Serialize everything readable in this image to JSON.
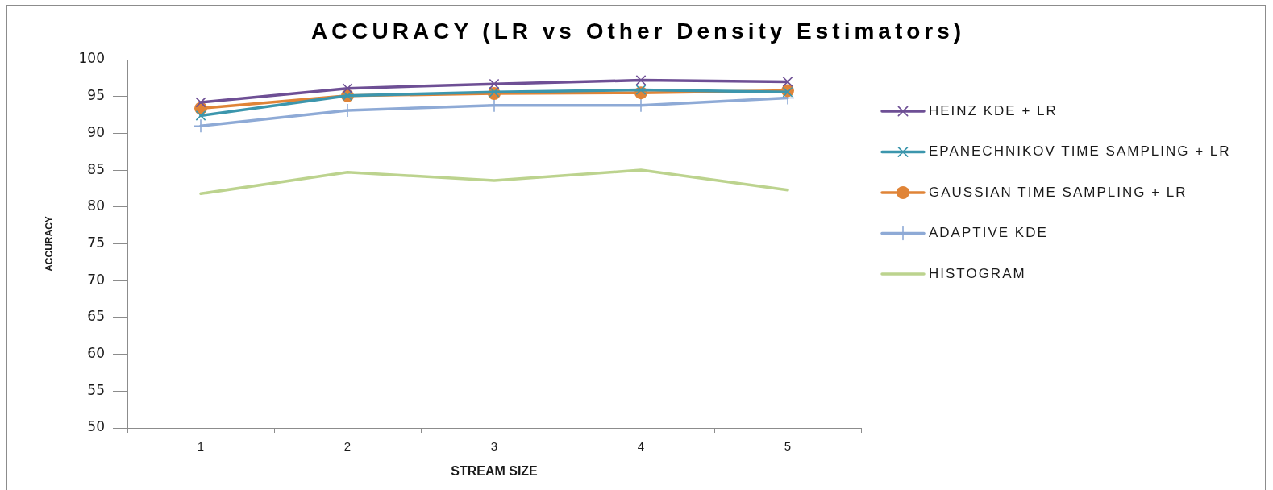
{
  "chart_data": {
    "type": "line",
    "title": "ACCURACY (LR vs Other Density Estimators)",
    "xlabel": "STREAM SIZE",
    "ylabel": "ACCURACY",
    "categories": [
      "1",
      "2",
      "3",
      "4",
      "5"
    ],
    "ylim": [
      50,
      100
    ],
    "yticks": [
      50,
      55,
      60,
      65,
      70,
      75,
      80,
      85,
      90,
      95,
      100
    ],
    "grid": false,
    "legend": "right",
    "series": [
      {
        "name": "HEINZ KDE + LR",
        "color": "#6e4f95",
        "marker": "cross",
        "values": [
          94.2,
          96.1,
          96.7,
          97.2,
          97.0
        ]
      },
      {
        "name": "EPANECHNIKOV TIME SAMPLING + LR",
        "color": "#3c96ad",
        "marker": "cross",
        "values": [
          92.4,
          95.1,
          95.6,
          95.9,
          95.6
        ]
      },
      {
        "name": "GAUSSIAN TIME SAMPLING + LR",
        "color": "#e08437",
        "marker": "circle",
        "values": [
          93.4,
          95.1,
          95.4,
          95.5,
          95.8
        ]
      },
      {
        "name": "ADAPTIVE KDE",
        "color": "#8eaad6",
        "marker": "plus",
        "values": [
          91.0,
          93.1,
          93.8,
          93.8,
          94.8
        ]
      },
      {
        "name": "HISTOGRAM",
        "color": "#bcd38e",
        "marker": "none",
        "values": [
          81.8,
          84.7,
          83.6,
          85.0,
          82.3
        ]
      }
    ]
  }
}
